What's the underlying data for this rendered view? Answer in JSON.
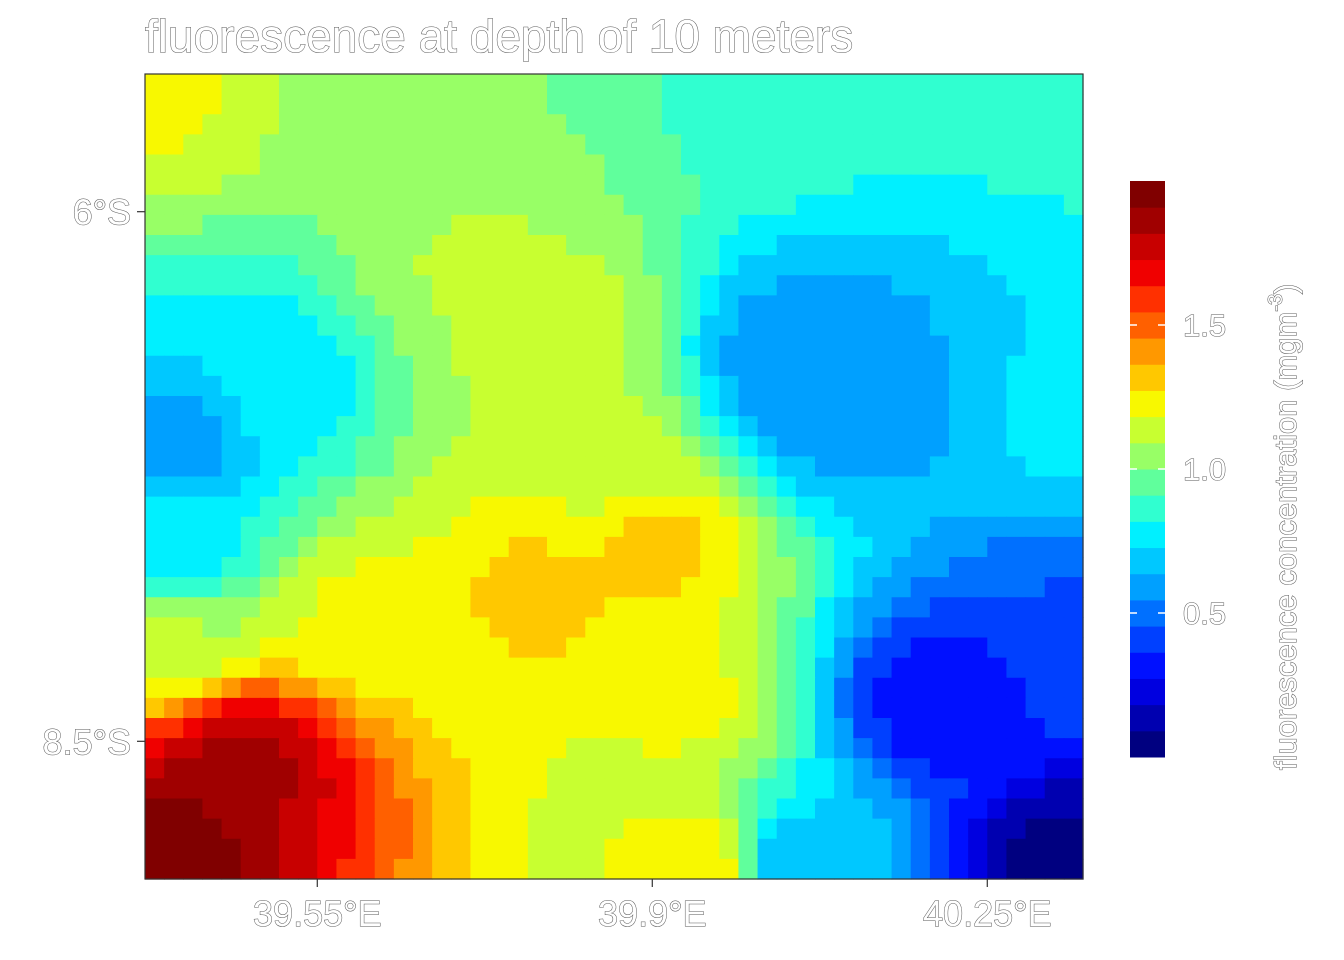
{
  "chart_data": {
    "type": "heatmap",
    "title": "fluorescence at depth of 10 meters",
    "xlabel": "",
    "ylabel": "",
    "x_ticks": [
      {
        "value": 39.55,
        "label": "39.55°E"
      },
      {
        "value": 39.9,
        "label": "39.9°E"
      },
      {
        "value": 40.25,
        "label": "40.25°E"
      }
    ],
    "y_ticks": [
      {
        "value": -6.0,
        "label": "6°S"
      },
      {
        "value": -8.5,
        "label": "8.5°S"
      }
    ],
    "xlim": [
      39.37,
      40.35
    ],
    "ylim": [
      -9.15,
      -5.35
    ],
    "grid": {
      "cols": 49,
      "rows": 40
    },
    "centers": [
      {
        "lon": 39.38,
        "lat": -9.0,
        "value": 2.0,
        "spread": 0.1
      },
      {
        "lon": 39.47,
        "lat": -8.6,
        "value": 1.85,
        "spread": 0.1
      },
      {
        "lon": 39.78,
        "lat": -7.8,
        "value": 1.3,
        "spread": 0.1
      },
      {
        "lon": 39.9,
        "lat": -7.6,
        "value": 1.3,
        "spread": 0.1
      },
      {
        "lon": 39.85,
        "lat": -7.2,
        "value": 1.15,
        "spread": 0.1
      },
      {
        "lon": 39.8,
        "lat": -6.6,
        "value": 1.15,
        "spread": 0.1
      },
      {
        "lon": 39.72,
        "lat": -6.3,
        "value": 1.1,
        "spread": 0.1
      },
      {
        "lon": 39.38,
        "lat": -5.4,
        "value": 1.2,
        "spread": 0.1
      },
      {
        "lon": 39.6,
        "lat": -5.4,
        "value": 1.05,
        "spread": 0.1
      },
      {
        "lon": 40.0,
        "lat": -5.4,
        "value": 0.9,
        "spread": 0.1
      },
      {
        "lon": 40.34,
        "lat": -5.4,
        "value": 0.85,
        "spread": 0.1
      },
      {
        "lon": 39.4,
        "lat": -7.1,
        "value": 0.6,
        "spread": 0.1
      },
      {
        "lon": 39.5,
        "lat": -6.8,
        "value": 0.75,
        "spread": 0.1
      },
      {
        "lon": 40.05,
        "lat": -6.7,
        "value": 0.55,
        "spread": 0.1
      },
      {
        "lon": 40.1,
        "lat": -6.9,
        "value": 0.55,
        "spread": 0.1
      },
      {
        "lon": 40.34,
        "lat": -7.0,
        "value": 0.75,
        "spread": 0.1
      },
      {
        "lon": 40.34,
        "lat": -9.1,
        "value": 0.05,
        "spread": 0.1
      },
      {
        "lon": 40.2,
        "lat": -8.3,
        "value": 0.3,
        "spread": 0.1
      },
      {
        "lon": 40.34,
        "lat": -7.9,
        "value": 0.45,
        "spread": 0.1
      },
      {
        "lon": 40.05,
        "lat": -9.1,
        "value": 0.65,
        "spread": 0.1
      },
      {
        "lon": 39.95,
        "lat": -9.1,
        "value": 1.25,
        "spread": 0.1
      },
      {
        "lon": 39.93,
        "lat": -8.3,
        "value": 1.2,
        "spread": 0.1
      },
      {
        "lon": 39.4,
        "lat": -8.0,
        "value": 1.1,
        "spread": 0.1
      },
      {
        "lon": 39.6,
        "lat": -7.9,
        "value": 1.2,
        "spread": 0.1
      },
      {
        "lon": 39.4,
        "lat": -7.6,
        "value": 0.75,
        "spread": 0.1
      }
    ],
    "legend": {
      "title_text": "fluorescence concentration (mgm",
      "title_sup": "-3",
      "title_close": ")",
      "position": "right",
      "min": 0.0,
      "max": 2.0,
      "breaks": [
        {
          "value": 0.5,
          "label": "0.5"
        },
        {
          "value": 1.0,
          "label": "1.0"
        },
        {
          "value": 1.5,
          "label": "1.5"
        }
      ],
      "palette": [
        "#000080",
        "#0000b0",
        "#0000e0",
        "#0010ff",
        "#0040ff",
        "#0070ff",
        "#00a0ff",
        "#00c8ff",
        "#00f0ff",
        "#30ffd0",
        "#60ff9c",
        "#98ff66",
        "#c8ff30",
        "#f8f800",
        "#ffc800",
        "#ff9800",
        "#ff6000",
        "#ff3000",
        "#f00000",
        "#c80000",
        "#a00000",
        "#800000"
      ]
    }
  }
}
